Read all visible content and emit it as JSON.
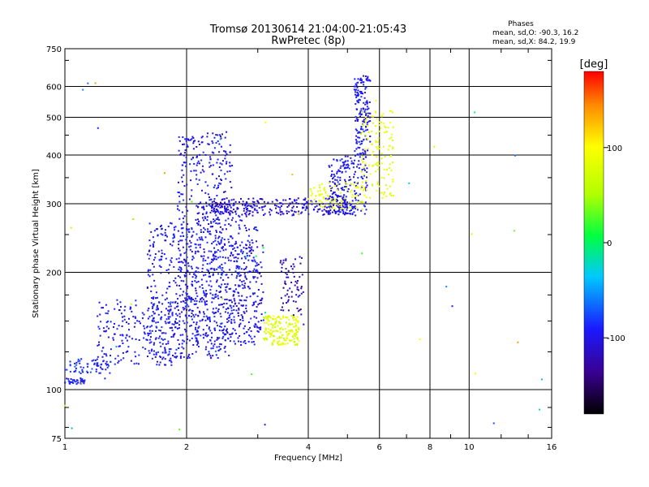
{
  "chart_data": {
    "type": "scatter",
    "title": "Tromsø 20130614 21:04:00-21:05:43",
    "subtitle": "RwPretec (8p)",
    "xlabel": "Frequency [MHz]",
    "ylabel": "Stationary phase Virtual Height [km]",
    "x_scale": "log",
    "y_scale": "log",
    "xlim": [
      1,
      16
    ],
    "ylim": [
      75,
      750
    ],
    "x_ticks": [
      1,
      2,
      4,
      6,
      8,
      10,
      16
    ],
    "x_tick_labels": [
      "1",
      "2",
      "4",
      "6",
      "8",
      "10",
      "16"
    ],
    "y_ticks": [
      75,
      100,
      200,
      300,
      400,
      500,
      600,
      750
    ],
    "y_tick_labels": [
      "75",
      "100",
      "200",
      "300",
      "400",
      "500",
      "600",
      "750"
    ],
    "grid": true,
    "stats": {
      "title": "Phases",
      "line_o": "mean, sd,O: -90.3, 16.2",
      "line_x": "mean, sd,X:  84.2, 19.9"
    },
    "colorbar": {
      "label": "[deg]",
      "min": -180,
      "max": 180,
      "ticks": [
        100,
        0,
        -100
      ],
      "tick_labels": [
        "100",
        "0",
        "-100"
      ]
    },
    "point_groups": [
      {
        "x_range": [
          1.0,
          1.12
        ],
        "y_range": [
          103,
          107
        ],
        "phase_range": [
          -100,
          -80
        ],
        "count": 40
      },
      {
        "x_range": [
          1.0,
          1.3
        ],
        "y_range": [
          110,
          120
        ],
        "phase_range": [
          -100,
          -70
        ],
        "count": 60
      },
      {
        "x_range": [
          1.2,
          1.9
        ],
        "y_range": [
          115,
          170
        ],
        "phase_range": [
          -110,
          -80
        ],
        "count": 220
      },
      {
        "x_range": [
          1.6,
          2.1
        ],
        "y_range": [
          120,
          270
        ],
        "phase_range": [
          -110,
          -80
        ],
        "count": 300
      },
      {
        "x_range": [
          1.9,
          2.6
        ],
        "y_range": [
          120,
          460
        ],
        "phase_range": [
          -115,
          -80
        ],
        "count": 520
      },
      {
        "x_range": [
          2.1,
          3.0
        ],
        "y_range": [
          130,
          300
        ],
        "phase_range": [
          -110,
          -80
        ],
        "count": 380
      },
      {
        "x_range": [
          2.6,
          3.1
        ],
        "y_range": [
          140,
          240
        ],
        "phase_range": [
          -120,
          -90
        ],
        "count": 120
      },
      {
        "x_range": [
          2.3,
          5.0
        ],
        "y_range": [
          280,
          310
        ],
        "phase_range": [
          -125,
          -90
        ],
        "count": 260
      },
      {
        "x_range": [
          3.1,
          3.8
        ],
        "y_range": [
          130,
          155
        ],
        "phase_range": [
          60,
          100
        ],
        "count": 180
      },
      {
        "x_range": [
          3.4,
          3.9
        ],
        "y_range": [
          155,
          220
        ],
        "phase_range": [
          -140,
          -100
        ],
        "count": 70
      },
      {
        "x_range": [
          4.5,
          5.6
        ],
        "y_range": [
          280,
          400
        ],
        "phase_range": [
          -110,
          -80
        ],
        "count": 220
      },
      {
        "x_range": [
          5.2,
          5.7
        ],
        "y_range": [
          400,
          640
        ],
        "phase_range": [
          -110,
          -80
        ],
        "count": 160
      },
      {
        "x_range": [
          4.0,
          5.5
        ],
        "y_range": [
          290,
          340
        ],
        "phase_range": [
          70,
          100
        ],
        "count": 90
      },
      {
        "x_range": [
          5.4,
          6.5
        ],
        "y_range": [
          310,
          520
        ],
        "phase_range": [
          70,
          100
        ],
        "count": 130
      },
      {
        "x_range": [
          1.0,
          16.0
        ],
        "y_range": [
          78,
          640
        ],
        "phase_range": [
          -120,
          140
        ],
        "count": 45
      }
    ]
  }
}
